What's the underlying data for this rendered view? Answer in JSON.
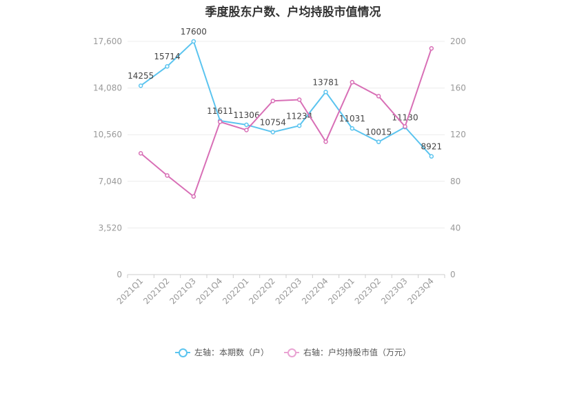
{
  "chart_data": {
    "type": "line",
    "title": "季度股东户数、户均持股市值情况",
    "categories": [
      "2021Q1",
      "2021Q2",
      "2021Q3",
      "2021Q4",
      "2022Q1",
      "2022Q2",
      "2022Q3",
      "2022Q4",
      "2023Q1",
      "2023Q2",
      "2023Q3",
      "2023Q4"
    ],
    "left_axis": {
      "ticks": [
        "0",
        "3,520",
        "7,040",
        "10,560",
        "14,080",
        "17,600"
      ],
      "ylim": [
        0,
        17600
      ]
    },
    "right_axis": {
      "ticks": [
        "0",
        "40",
        "80",
        "120",
        "160",
        "200"
      ],
      "ylim": [
        0,
        200
      ]
    },
    "series": [
      {
        "name": "左轴：本期数（户）",
        "axis": "left",
        "color": "#5bc4ef",
        "values": [
          14255,
          15714,
          17600,
          11611,
          11306,
          10754,
          11234,
          13781,
          11031,
          10015,
          11130,
          8921
        ],
        "labels": [
          "14255",
          "15714",
          "17600",
          "11611",
          "11306",
          "10754",
          "11234",
          "13781",
          "11031",
          "10015",
          "11130",
          "8921"
        ]
      },
      {
        "name": "右轴：户均持股市值（万元）",
        "axis": "right",
        "color": "#d86fb6",
        "values": [
          104,
          85,
          67,
          131,
          124,
          149,
          150,
          114,
          165,
          153,
          127,
          194
        ]
      }
    ],
    "grid": true,
    "legend_position": "bottom"
  }
}
